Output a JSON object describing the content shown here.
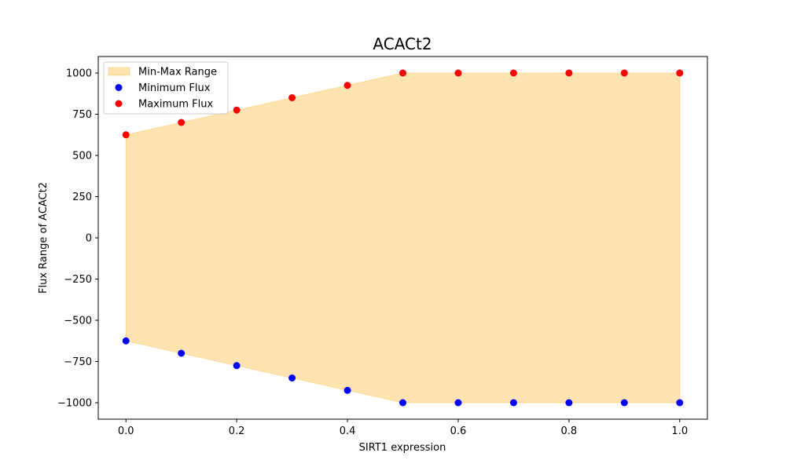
{
  "chart_data": {
    "type": "scatter",
    "title": "ACACt2",
    "xlabel": "SIRT1 expression",
    "ylabel": "Flux Range of ACACt2",
    "xlim": [
      -0.05,
      1.05
    ],
    "ylim": [
      -1100,
      1100
    ],
    "x_ticks": [
      0.0,
      0.2,
      0.4,
      0.6,
      0.8,
      1.0
    ],
    "x_tick_labels": [
      "0.0",
      "0.2",
      "0.4",
      "0.6",
      "0.8",
      "1.0"
    ],
    "y_ticks": [
      1000,
      750,
      500,
      250,
      0,
      -250,
      -500,
      -750,
      -1000
    ],
    "y_tick_labels": [
      "1000",
      "750",
      "500",
      "250",
      "0",
      "−250",
      "−500",
      "−750",
      "−1000"
    ],
    "grid": false,
    "legend_position": "upper-left",
    "x": [
      0.0,
      0.1,
      0.2,
      0.3,
      0.4,
      0.5,
      0.6,
      0.7,
      0.8,
      0.9,
      1.0
    ],
    "series": [
      {
        "name": "Minimum Flux",
        "kind": "scatter",
        "color": "#0000ff",
        "values": [
          -625,
          -700,
          -775,
          -850,
          -925,
          -1000,
          -1000,
          -1000,
          -1000,
          -1000,
          -1000
        ]
      },
      {
        "name": "Maximum Flux",
        "kind": "scatter",
        "color": "#ff0000",
        "values": [
          625,
          700,
          775,
          850,
          925,
          1000,
          1000,
          1000,
          1000,
          1000,
          1000
        ]
      }
    ],
    "fill": {
      "name": "Min-Max Range",
      "color": "#ffa500",
      "opacity": 0.3
    },
    "legend": [
      {
        "label": "Min-Max Range",
        "kind": "area",
        "color": "#ffa500"
      },
      {
        "label": "Minimum Flux",
        "kind": "point",
        "color": "#0000ff"
      },
      {
        "label": "Maximum Flux",
        "kind": "point",
        "color": "#ff0000"
      }
    ]
  }
}
